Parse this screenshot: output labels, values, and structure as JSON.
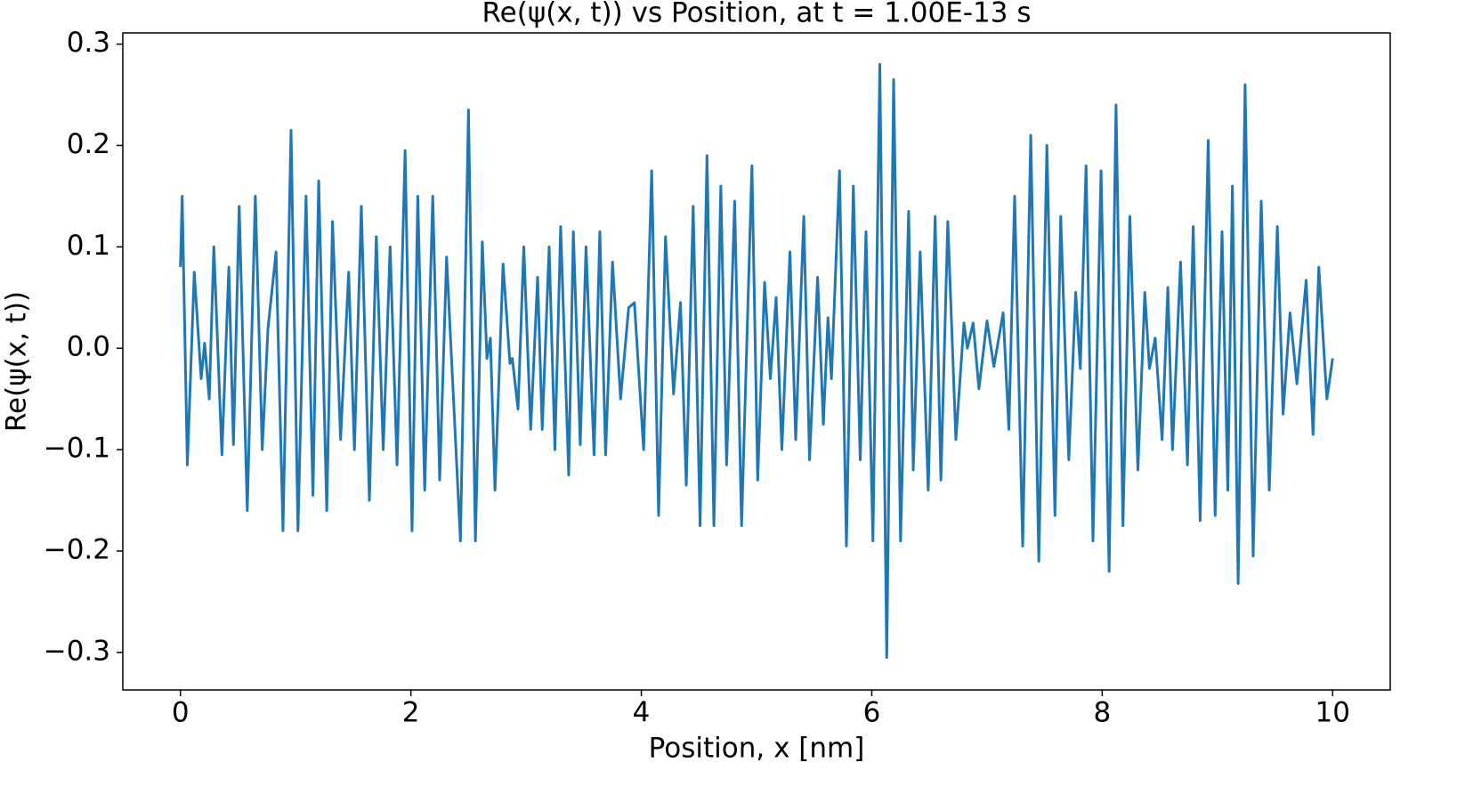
{
  "chart_data": {
    "type": "line",
    "title": "Re(ψ(x, t)) vs Position, at t = 1.00E-13 s",
    "x_label": "Position, x [nm]",
    "y_label": "Re(ψ(x, t))",
    "xlim": [
      -0.5,
      10.5
    ],
    "ylim": [
      -0.337,
      0.311
    ],
    "xticks": [
      0,
      2,
      4,
      6,
      8,
      10
    ],
    "yticks": [
      {
        "value": -0.3,
        "label": "−0.3"
      },
      {
        "value": -0.2,
        "label": "−0.2"
      },
      {
        "value": -0.1,
        "label": "−0.1"
      },
      {
        "value": 0,
        "label": "0.0"
      },
      0.1,
      0.2,
      0.3
    ],
    "series": [
      {
        "color": "#1f77b4",
        "x": [
          0,
          0.015,
          0.06,
          0.12,
          0.18,
          0.21,
          0.25,
          0.29,
          0.36,
          0.42,
          0.46,
          0.51,
          0.58,
          0.65,
          0.71,
          0.76,
          0.83,
          0.89,
          0.96,
          1.02,
          1.09,
          1.15,
          1.2,
          1.27,
          1.32,
          1.39,
          1.46,
          1.51,
          1.57,
          1.64,
          1.7,
          1.76,
          1.82,
          1.88,
          1.95,
          2.01,
          2.06,
          2.12,
          2.19,
          2.25,
          2.31,
          2.37,
          2.43,
          2.5,
          2.56,
          2.62,
          2.66,
          2.69,
          2.73,
          2.8,
          2.86,
          2.88,
          2.93,
          2.98,
          3.04,
          3.1,
          3.14,
          3.2,
          3.25,
          3.3,
          3.37,
          3.41,
          3.47,
          3.52,
          3.59,
          3.64,
          3.69,
          3.75,
          3.82,
          3.89,
          3.94,
          4.02,
          4.09,
          4.15,
          4.21,
          4.28,
          4.34,
          4.39,
          4.45,
          4.51,
          4.57,
          4.63,
          4.69,
          4.74,
          4.81,
          4.87,
          4.96,
          5.01,
          5.07,
          5.12,
          5.17,
          5.22,
          5.29,
          5.34,
          5.41,
          5.46,
          5.53,
          5.58,
          5.62,
          5.65,
          5.72,
          5.78,
          5.84,
          5.9,
          5.95,
          6.01,
          6.07,
          6.13,
          6.19,
          6.25,
          6.32,
          6.36,
          6.42,
          6.49,
          6.55,
          6.6,
          6.66,
          6.73,
          6.8,
          6.83,
          6.88,
          6.93,
          7.0,
          7.06,
          7.14,
          7.19,
          7.24,
          7.31,
          7.38,
          7.45,
          7.52,
          7.59,
          7.64,
          7.71,
          7.77,
          7.81,
          7.86,
          7.92,
          7.99,
          8.06,
          8.12,
          8.18,
          8.24,
          8.31,
          8.37,
          8.41,
          8.46,
          8.52,
          8.57,
          8.61,
          8.68,
          8.74,
          8.79,
          8.85,
          8.92,
          8.98,
          9.04,
          9.09,
          9.13,
          9.18,
          9.24,
          9.31,
          9.38,
          9.45,
          9.52,
          9.57,
          9.63,
          9.69,
          9.77,
          9.83,
          9.88,
          9.95,
          10
        ],
        "values": [
          0.08,
          0.15,
          -0.115,
          0.075,
          -0.03,
          0.005,
          -0.05,
          0.1,
          -0.105,
          0.08,
          -0.095,
          0.14,
          -0.16,
          0.15,
          -0.1,
          0.02,
          0.095,
          -0.18,
          0.215,
          -0.18,
          0.15,
          -0.145,
          0.165,
          -0.16,
          0.125,
          -0.09,
          0.075,
          -0.1,
          0.14,
          -0.15,
          0.11,
          -0.1,
          0.1,
          -0.115,
          0.195,
          -0.18,
          0.15,
          -0.14,
          0.15,
          -0.13,
          0.09,
          -0.05,
          -0.19,
          0.235,
          -0.19,
          0.105,
          -0.01,
          0.01,
          -0.14,
          0.083,
          -0.015,
          -0.01,
          -0.06,
          0.1,
          -0.08,
          0.07,
          -0.08,
          0.1,
          -0.1,
          0.12,
          -0.125,
          0.115,
          -0.095,
          0.1,
          -0.105,
          0.115,
          -0.105,
          0.085,
          -0.05,
          0.04,
          0.045,
          -0.1,
          0.175,
          -0.165,
          0.11,
          -0.045,
          0.045,
          -0.135,
          0.14,
          -0.175,
          0.19,
          -0.175,
          0.16,
          -0.115,
          0.145,
          -0.175,
          0.18,
          -0.13,
          0.065,
          -0.03,
          0.05,
          -0.1,
          0.095,
          -0.09,
          0.13,
          -0.11,
          0.07,
          -0.075,
          0.03,
          -0.03,
          0.175,
          -0.195,
          0.16,
          -0.11,
          0.115,
          -0.19,
          0.28,
          -0.305,
          0.265,
          -0.19,
          0.135,
          -0.12,
          0.095,
          -0.14,
          0.13,
          -0.13,
          0.125,
          -0.09,
          0.025,
          0.0,
          0.025,
          -0.04,
          0.027,
          -0.018,
          0.035,
          -0.08,
          0.15,
          -0.195,
          0.21,
          -0.21,
          0.2,
          -0.165,
          0.13,
          -0.11,
          0.055,
          -0.02,
          0.18,
          -0.19,
          0.175,
          -0.22,
          0.24,
          -0.175,
          0.13,
          -0.12,
          0.055,
          -0.02,
          0.01,
          -0.09,
          0.06,
          -0.1,
          0.085,
          -0.115,
          0.12,
          -0.17,
          0.205,
          -0.165,
          0.115,
          -0.14,
          0.16,
          -0.232,
          0.26,
          -0.205,
          0.145,
          -0.14,
          0.12,
          -0.065,
          0.035,
          -0.035,
          0.067,
          -0.085,
          0.08,
          -0.05,
          -0.01
        ]
      }
    ]
  }
}
